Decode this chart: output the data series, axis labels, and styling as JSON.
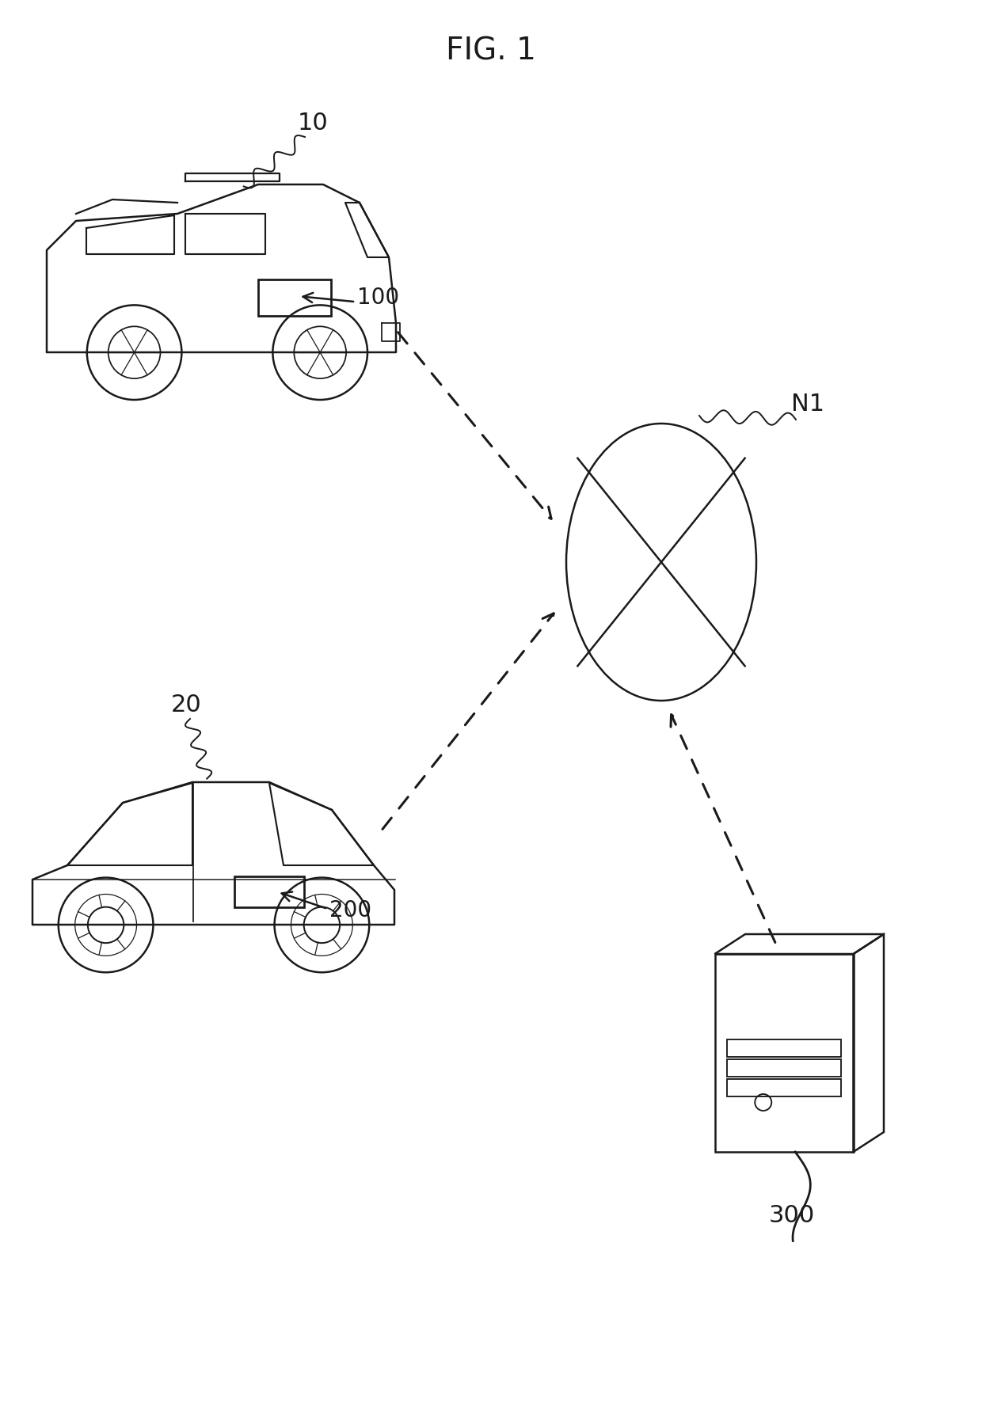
{
  "title": "FIG. 1",
  "title_fontsize": 28,
  "bg_color": "#ffffff",
  "line_color": "#1a1a1a",
  "label_10": "10",
  "label_20": "20",
  "label_100": "100",
  "label_200": "200",
  "label_N1": "N1",
  "label_300": "300",
  "fig_width": 12.4,
  "fig_height": 17.76,
  "dpi": 100
}
